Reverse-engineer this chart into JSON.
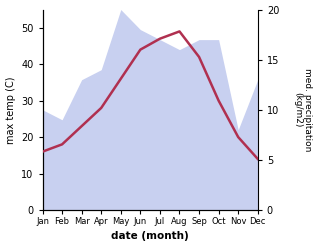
{
  "months": [
    "Jan",
    "Feb",
    "Mar",
    "Apr",
    "May",
    "Jun",
    "Jul",
    "Aug",
    "Sep",
    "Oct",
    "Nov",
    "Dec"
  ],
  "temperature": [
    16,
    18,
    23,
    28,
    36,
    44,
    47,
    49,
    42,
    30,
    20,
    14
  ],
  "precipitation": [
    10,
    9,
    13,
    14,
    20,
    18,
    17,
    16,
    17,
    17,
    8,
    13
  ],
  "temp_color": "#b03050",
  "precip_fill_color": "#c8d0f0",
  "xlabel": "date (month)",
  "ylabel_left": "max temp (C)",
  "ylabel_right": "med. precipitation\n(kg/m2)",
  "ylim_left": [
    0,
    55
  ],
  "ylim_right": [
    0,
    20
  ],
  "yticks_left": [
    0,
    10,
    20,
    30,
    40,
    50
  ],
  "yticks_right": [
    0,
    5,
    10,
    15,
    20
  ],
  "bg_color": "#ffffff"
}
